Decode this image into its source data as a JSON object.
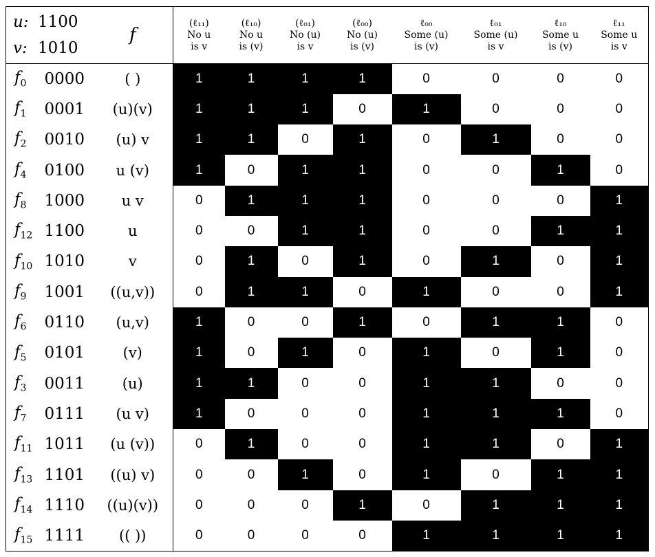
{
  "header": {
    "u_label": "u:",
    "u_value": "1100",
    "v_label": "v:",
    "v_value": "1010",
    "f_label": "f",
    "columns": [
      {
        "line1": "(ℓ₁₁)",
        "line2": "No u",
        "line3": "is v"
      },
      {
        "line1": "(ℓ₁₀)",
        "line2": "No u",
        "line3": "is (v)"
      },
      {
        "line1": "(ℓ₀₁)",
        "line2": "No (u)",
        "line3": "is v"
      },
      {
        "line1": "(ℓ₀₀)",
        "line2": "No (u)",
        "line3": "is (v)"
      },
      {
        "line1": "ℓ₀₀",
        "line2": "Some (u)",
        "line3": "is (v)"
      },
      {
        "line1": "ℓ₀₁",
        "line2": "Some (u)",
        "line3": "is v"
      },
      {
        "line1": "ℓ₁₀",
        "line2": "Some u",
        "line3": "is (v)"
      },
      {
        "line1": "ℓ₁₁",
        "line2": "Some u",
        "line3": "is v"
      }
    ]
  },
  "rows": [
    {
      "name": "f",
      "sub": "0",
      "code": "0000",
      "expr": "( )",
      "bits": [
        "1",
        "1",
        "1",
        "1",
        "0",
        "0",
        "0",
        "0"
      ]
    },
    {
      "name": "f",
      "sub": "1",
      "code": "0001",
      "expr": "(u)(v)",
      "bits": [
        "1",
        "1",
        "1",
        "0",
        "1",
        "0",
        "0",
        "0"
      ]
    },
    {
      "name": "f",
      "sub": "2",
      "code": "0010",
      "expr": "(u) v",
      "bits": [
        "1",
        "1",
        "0",
        "1",
        "0",
        "1",
        "0",
        "0"
      ]
    },
    {
      "name": "f",
      "sub": "4",
      "code": "0100",
      "expr": "u (v)",
      "bits": [
        "1",
        "0",
        "1",
        "1",
        "0",
        "0",
        "1",
        "0"
      ]
    },
    {
      "name": "f",
      "sub": "8",
      "code": "1000",
      "expr": "u v",
      "bits": [
        "0",
        "1",
        "1",
        "1",
        "0",
        "0",
        "0",
        "1"
      ]
    },
    {
      "name": "f",
      "sub": "12",
      "code": "1100",
      "expr": "u",
      "bits": [
        "0",
        "0",
        "1",
        "1",
        "0",
        "0",
        "1",
        "1"
      ]
    },
    {
      "name": "f",
      "sub": "10",
      "code": "1010",
      "expr": "v",
      "bits": [
        "0",
        "1",
        "0",
        "1",
        "0",
        "1",
        "0",
        "1"
      ]
    },
    {
      "name": "f",
      "sub": "9",
      "code": "1001",
      "expr": "((u,v))",
      "bits": [
        "0",
        "1",
        "1",
        "0",
        "1",
        "0",
        "0",
        "1"
      ]
    },
    {
      "name": "f",
      "sub": "6",
      "code": "0110",
      "expr": "(u,v)",
      "bits": [
        "1",
        "0",
        "0",
        "1",
        "0",
        "1",
        "1",
        "0"
      ]
    },
    {
      "name": "f",
      "sub": "5",
      "code": "0101",
      "expr": "(v)",
      "bits": [
        "1",
        "0",
        "1",
        "0",
        "1",
        "0",
        "1",
        "0"
      ]
    },
    {
      "name": "f",
      "sub": "3",
      "code": "0011",
      "expr": "(u)",
      "bits": [
        "1",
        "1",
        "0",
        "0",
        "1",
        "1",
        "0",
        "0"
      ]
    },
    {
      "name": "f",
      "sub": "7",
      "code": "0111",
      "expr": "(u v)",
      "bits": [
        "1",
        "0",
        "0",
        "0",
        "1",
        "1",
        "1",
        "0"
      ]
    },
    {
      "name": "f",
      "sub": "11",
      "code": "1011",
      "expr": "(u (v))",
      "bits": [
        "0",
        "1",
        "0",
        "0",
        "1",
        "1",
        "0",
        "1"
      ]
    },
    {
      "name": "f",
      "sub": "13",
      "code": "1101",
      "expr": "((u) v)",
      "bits": [
        "0",
        "0",
        "1",
        "0",
        "1",
        "0",
        "1",
        "1"
      ]
    },
    {
      "name": "f",
      "sub": "14",
      "code": "1110",
      "expr": "((u)(v))",
      "bits": [
        "0",
        "0",
        "0",
        "1",
        "0",
        "1",
        "1",
        "1"
      ]
    },
    {
      "name": "f",
      "sub": "15",
      "code": "1111",
      "expr": "(( ))",
      "bits": [
        "0",
        "0",
        "0",
        "0",
        "1",
        "1",
        "1",
        "1"
      ]
    }
  ],
  "colors": {
    "filled": "#000000",
    "empty": "#ffffff",
    "filled_text": "#ffffff",
    "empty_text": "#000000"
  }
}
